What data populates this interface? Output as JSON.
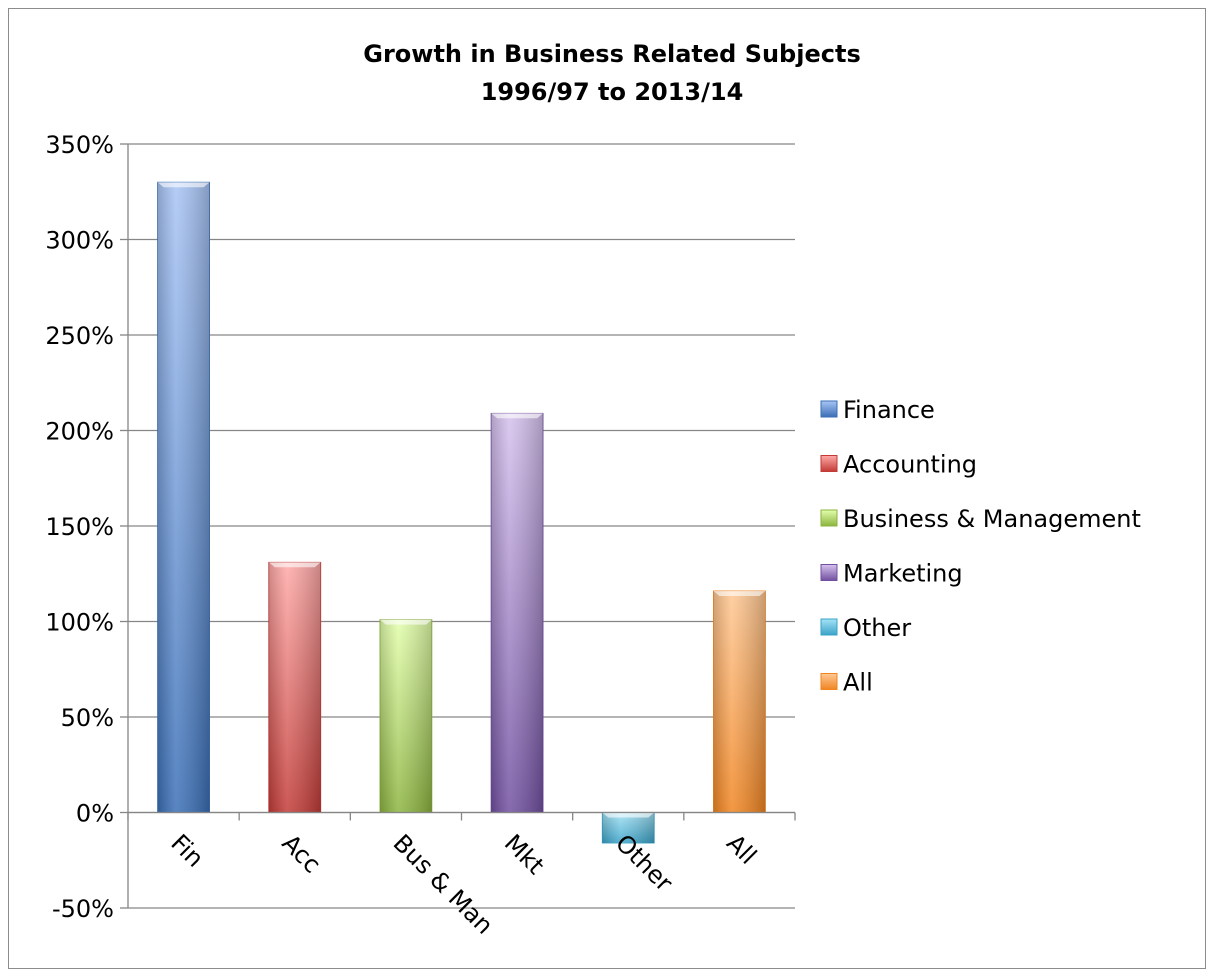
{
  "chart_data": {
    "type": "bar",
    "title": [
      "Growth in Business Related Subjects",
      "1996/97 to 2013/14"
    ],
    "xlabel": "",
    "ylabel": "",
    "categories": [
      "Fin",
      "Acc",
      "Bus & Man",
      "Mkt",
      "Other",
      "All"
    ],
    "values": [
      330,
      131,
      101,
      209,
      -16,
      116
    ],
    "value_format": "percent",
    "ylim": [
      -50,
      350
    ],
    "yticks": [
      "-50%",
      "0%",
      "50%",
      "100%",
      "150%",
      "200%",
      "250%",
      "300%",
      "350%"
    ],
    "grid": true,
    "legend_position": "right",
    "legend": [
      "Finance",
      "Accounting",
      "Business & Management",
      "Marketing",
      "Other",
      "All"
    ],
    "colors": [
      {
        "light": "#a9c5f5",
        "dark": "#3b6fb6"
      },
      {
        "light": "#ffaaa8",
        "dark": "#c23b37"
      },
      {
        "light": "#e3ffac",
        "dark": "#8cb43f"
      },
      {
        "light": "#d6c2ee",
        "dark": "#7150a0"
      },
      {
        "light": "#a6e3f7",
        "dark": "#3aa3c8"
      },
      {
        "light": "#ffc894",
        "dark": "#f08522"
      }
    ]
  }
}
